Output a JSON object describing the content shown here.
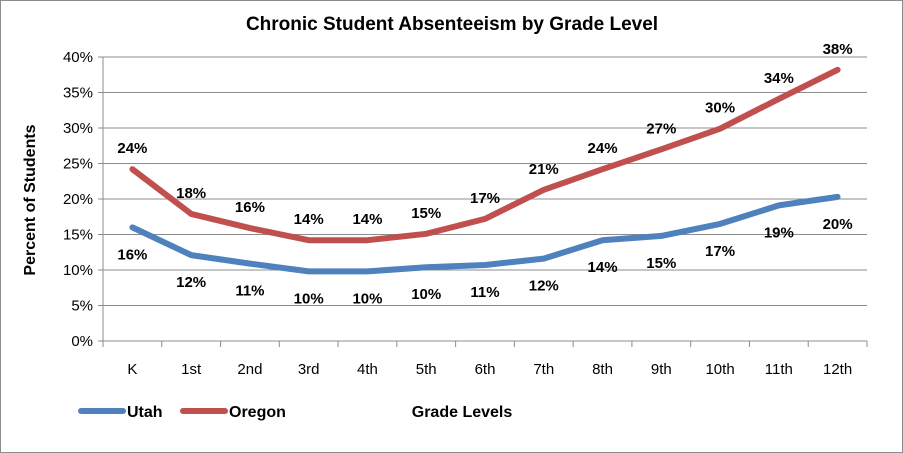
{
  "chart_data": {
    "type": "line",
    "title": "Chronic Student Absenteeism by Grade Level",
    "xlabel": "Grade Levels",
    "ylabel": "Percent of Students",
    "categories": [
      "K",
      "1st",
      "2nd",
      "3rd",
      "4th",
      "5th",
      "6th",
      "7th",
      "8th",
      "9th",
      "10th",
      "11th",
      "12th"
    ],
    "ylim": [
      0,
      40
    ],
    "y_ticks": [
      "0%",
      "5%",
      "10%",
      "15%",
      "20%",
      "25%",
      "30%",
      "35%",
      "40%"
    ],
    "grid": true,
    "legend_position": "bottom-left",
    "series": [
      {
        "name": "Utah",
        "color": "#4f81bd",
        "values": [
          16,
          12.1,
          10.9,
          9.8,
          9.8,
          10.4,
          10.7,
          11.6,
          14.2,
          14.8,
          16.5,
          19.1,
          20.3
        ],
        "labels": [
          "16%",
          "12%",
          "11%",
          "10%",
          "10%",
          "10%",
          "11%",
          "12%",
          "14%",
          "15%",
          "17%",
          "19%",
          "20%"
        ]
      },
      {
        "name": "Oregon",
        "color": "#c0504d",
        "values": [
          24.2,
          17.9,
          15.9,
          14.2,
          14.2,
          15.1,
          17.2,
          21.3,
          24.2,
          27,
          29.9,
          34.1,
          38.2
        ],
        "labels": [
          "24%",
          "18%",
          "16%",
          "14%",
          "14%",
          "15%",
          "17%",
          "21%",
          "24%",
          "27%",
          "30%",
          "34%",
          "38%"
        ]
      }
    ]
  }
}
